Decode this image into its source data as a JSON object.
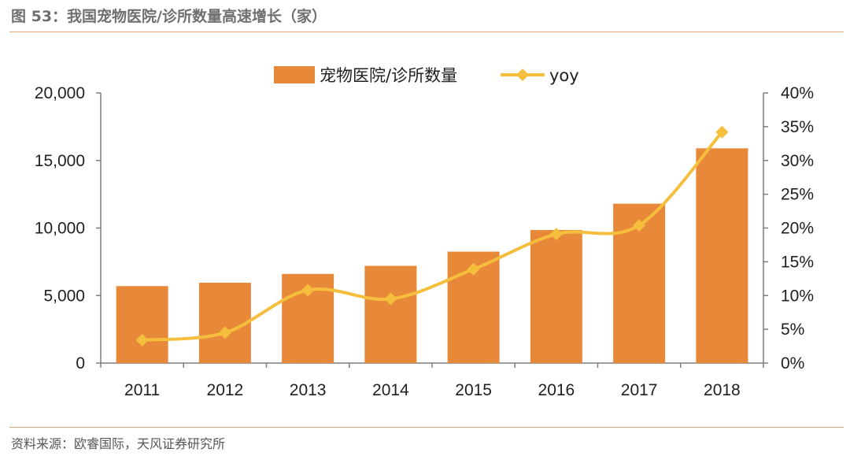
{
  "figure_title": "图 53：我国宠物医院/诊所数量高速增长（家）",
  "source": "资料来源：欧睿国际，天风证券研究所",
  "colors": {
    "bar": "#e8893a",
    "line": "#f5be3c",
    "axis": "#7f7f7f",
    "rule": "#e8a875"
  },
  "chart_data": {
    "type": "bar",
    "categories": [
      "2011",
      "2012",
      "2013",
      "2014",
      "2015",
      "2016",
      "2017",
      "2018"
    ],
    "series": [
      {
        "name": "宠物医院/诊所数量",
        "type": "bar",
        "axis": "left",
        "values": [
          5700,
          5950,
          6600,
          7200,
          8250,
          9850,
          11800,
          15900
        ]
      },
      {
        "name": "yoy",
        "type": "line",
        "axis": "right",
        "marker": "diamond",
        "values": [
          3.4,
          4.5,
          10.8,
          9.5,
          13.9,
          19.1,
          20.4,
          34.2
        ]
      }
    ],
    "y_left": {
      "lim": [
        0,
        20000
      ],
      "ticks": [
        "0",
        "5,000",
        "10,000",
        "15,000",
        "20,000"
      ]
    },
    "y_right": {
      "lim": [
        0,
        40
      ],
      "ticks": [
        "0%",
        "5%",
        "10%",
        "15%",
        "20%",
        "25%",
        "30%",
        "35%",
        "40%"
      ]
    },
    "legend_position": "top-center",
    "grid": false
  }
}
